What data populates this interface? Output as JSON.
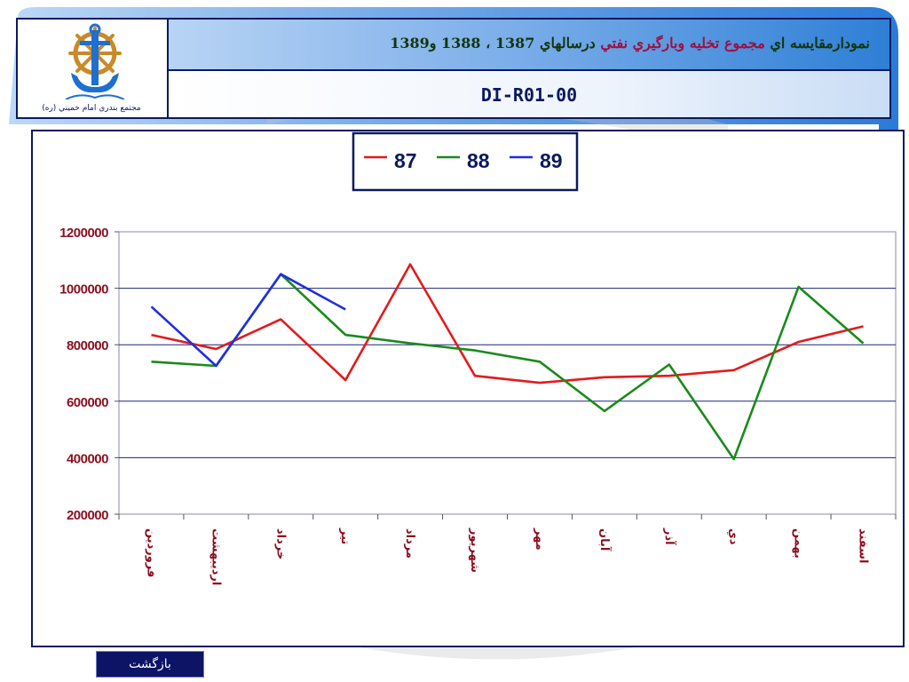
{
  "header": {
    "title_prefix": "نمودارمقايسه اي ",
    "title_accent": "مجموع تخليه وبارگيري نفتي",
    "title_suffix": " درسالهاي 1387 ، 1388 و1389",
    "doc_code": "DI-R01-00",
    "logo_caption": "مجتمع بندري امام خميني (ره)"
  },
  "footer": {
    "back_label": "بازگشت"
  },
  "colors": {
    "series_87": "#e31a1c",
    "series_88": "#1a8a1a",
    "series_89": "#1f2fe0",
    "axis_text": "#8b0f1f",
    "frame": "#0b1a5e"
  },
  "chart_data": {
    "type": "line",
    "title": "",
    "xlabel": "",
    "ylabel": "",
    "ylim": [
      200000,
      1200000
    ],
    "y_ticks": [
      "1200000",
      "1000000",
      "800000",
      "600000",
      "400000",
      "200000"
    ],
    "grid": true,
    "legend": "top-center",
    "categories": [
      "فروردين",
      "ارديبهشت",
      "خرداد",
      "تير",
      "مرداد",
      "شهريور",
      "مهر",
      "آبان",
      "آذر",
      "دي",
      "بهمن",
      "اسفند"
    ],
    "series": [
      {
        "name": "87",
        "color": "#e31a1c",
        "values": [
          835000,
          785000,
          890000,
          675000,
          1085000,
          690000,
          665000,
          685000,
          690000,
          710000,
          810000,
          865000
        ]
      },
      {
        "name": "88",
        "color": "#1a8a1a",
        "values": [
          740000,
          725000,
          1050000,
          835000,
          805000,
          780000,
          740000,
          565000,
          730000,
          395000,
          1005000,
          805000
        ]
      },
      {
        "name": "89",
        "color": "#1f2fe0",
        "values": [
          935000,
          725000,
          1050000,
          925000,
          null,
          null,
          null,
          null,
          null,
          null,
          null,
          null
        ]
      }
    ]
  }
}
